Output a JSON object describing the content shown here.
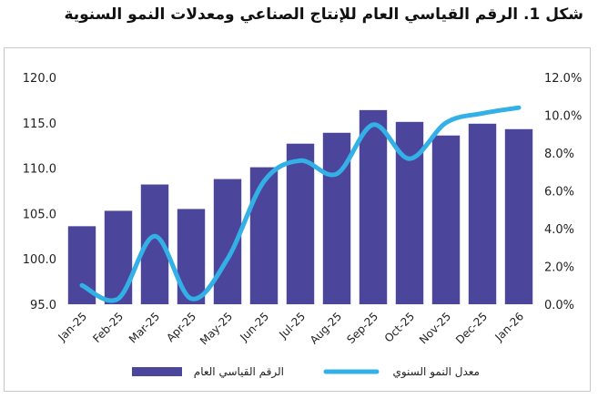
{
  "title": "شكل 1. الرقم القياسي العام للإنتاج الصناعي ومعدلات النمو السنوية",
  "colors": {
    "bars": "#4b459b",
    "line": "#33b0e6",
    "axis_text": "#222222"
  },
  "chart_data": {
    "type": "bar",
    "categories": [
      "Jan-25",
      "Feb-25",
      "Mar-25",
      "Apr-25",
      "May-25",
      "Jun-25",
      "Jul-25",
      "Aug-25",
      "Sep-25",
      "Oct-25",
      "Nov-25",
      "Dec-25",
      "Jan-26"
    ],
    "series": [
      {
        "name": "الرقم القياسي العام",
        "type": "bar",
        "axis": "left",
        "values": [
          103.6,
          105.3,
          108.2,
          105.5,
          108.8,
          110.1,
          112.7,
          113.9,
          116.4,
          115.1,
          113.6,
          114.9,
          114.3
        ]
      },
      {
        "name": "معدل النمو السنوي",
        "type": "line",
        "axis": "right",
        "values": [
          1.0,
          0.3,
          3.6,
          0.3,
          2.4,
          6.5,
          7.6,
          6.9,
          9.5,
          7.7,
          9.6,
          10.1,
          10.4
        ]
      }
    ],
    "y_left": {
      "min": 95,
      "max": 120,
      "ticks": [
        "95.0",
        "100.0",
        "105.0",
        "110.0",
        "115.0",
        "120.0"
      ]
    },
    "y_right": {
      "min": 0,
      "max": 12,
      "ticks": [
        "0.0%",
        "2.0%",
        "4.0%",
        "6.0%",
        "8.0%",
        "10.0%",
        "12.0%"
      ]
    },
    "legend_position": "bottom",
    "grid": false
  }
}
